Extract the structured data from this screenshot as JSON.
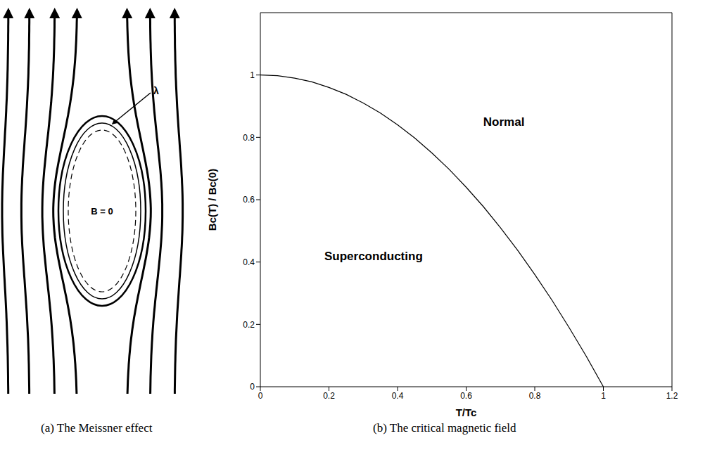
{
  "diagram": {
    "center_label": "B = 0",
    "depth_label": "λ",
    "caption": "(a) The Meissner effect"
  },
  "chart_data": {
    "type": "line",
    "caption": "(b) The critical magnetic field",
    "xlabel": "T/Tc",
    "ylabel": "Bc(T) / Bc(0)",
    "x": [
      0,
      0.05,
      0.1,
      0.15,
      0.2,
      0.25,
      0.3,
      0.35,
      0.4,
      0.45,
      0.5,
      0.55,
      0.6,
      0.65,
      0.7,
      0.75,
      0.8,
      0.85,
      0.9,
      0.95,
      1.0
    ],
    "values": [
      1.0,
      0.998,
      0.99,
      0.978,
      0.96,
      0.938,
      0.91,
      0.878,
      0.84,
      0.798,
      0.75,
      0.698,
      0.64,
      0.578,
      0.51,
      0.438,
      0.36,
      0.278,
      0.19,
      0.098,
      0.0
    ],
    "color": "#000000",
    "xlim": [
      0,
      1.2
    ],
    "ylim": [
      0,
      1.2
    ],
    "xticks": [
      0,
      0.2,
      0.4,
      0.6,
      0.8,
      1,
      1.2
    ],
    "yticks": [
      0,
      0.2,
      0.4,
      0.6,
      0.8,
      1
    ],
    "grid": false,
    "annotations": [
      {
        "text": "Normal",
        "x": 0.71,
        "y": 0.85
      },
      {
        "text": "Superconducting",
        "x": 0.33,
        "y": 0.42
      }
    ]
  }
}
